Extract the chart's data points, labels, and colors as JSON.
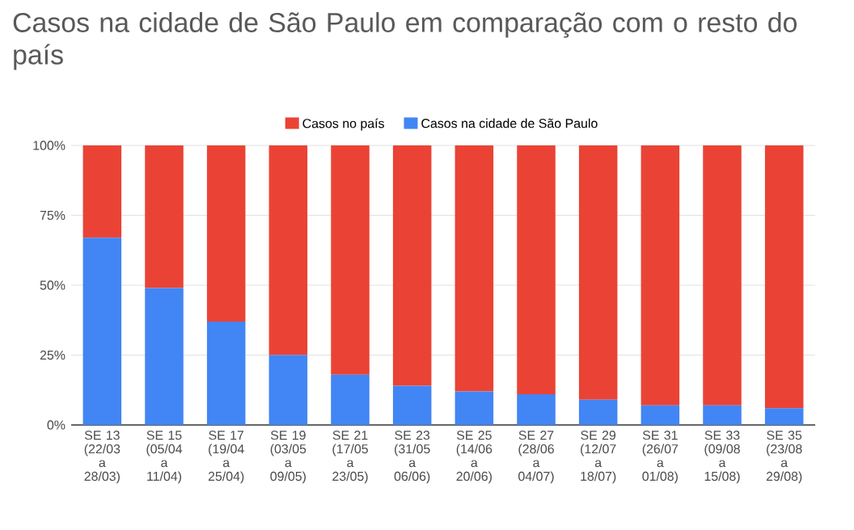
{
  "chart_data": {
    "type": "bar",
    "title": "Casos na cidade de São Paulo em comparação com o resto do país",
    "categories": [
      "SE 13 (22/03 a 28/03)",
      "SE 15 (05/04 a 11/04)",
      "SE 17 (19/04 a 25/04)",
      "SE 19 (03/05 a 09/05)",
      "SE 21 (17/05 a 23/05)",
      "SE 23 (31/05 a 06/06)",
      "SE 25 (14/06 a 20/06)",
      "SE 27 (28/06 a 04/07)",
      "SE 29 (12/07 a 18/07)",
      "SE 31 (26/07 a 01/08)",
      "SE 33 (09/08 a 15/08)",
      "SE 35 (23/08 a 29/08)"
    ],
    "series": [
      {
        "name": "Casos na cidade de São Paulo",
        "color": "#4285f4",
        "values": [
          67,
          49,
          37,
          25,
          18,
          14,
          12,
          11,
          9,
          7,
          7,
          6
        ]
      },
      {
        "name": "Casos no país",
        "color": "#ea4335",
        "values": [
          33,
          51,
          63,
          75,
          82,
          86,
          88,
          89,
          91,
          93,
          93,
          94
        ]
      }
    ],
    "stacked": true,
    "ylim": [
      0,
      100
    ],
    "yticks": [
      {
        "value": 0,
        "label": "0%"
      },
      {
        "value": 25,
        "label": "25%"
      },
      {
        "value": 50,
        "label": "50%"
      },
      {
        "value": 75,
        "label": "75%"
      },
      {
        "value": 100,
        "label": "100%"
      }
    ],
    "grid": "y",
    "legend": "top"
  }
}
